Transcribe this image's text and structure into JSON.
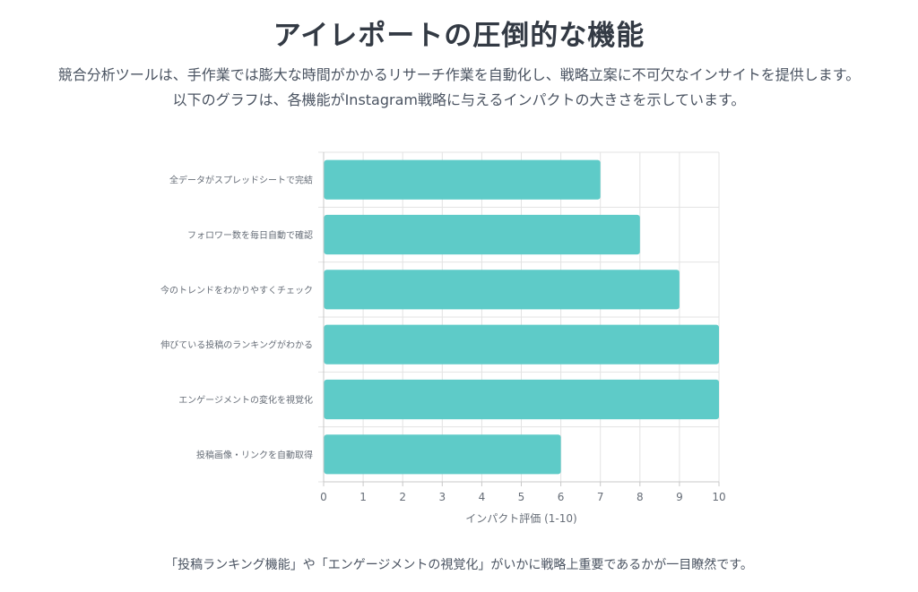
{
  "page": {
    "title": "アイレポートの圧倒的な機能",
    "intro": "競合分析ツールは、手作業では膨大な時間がかかるリサーチ作業を自動化し、戦略立案に不可欠なインサイトを提供します。以下のグラフは、各機能がInstagram戦略に与えるインパクトの大きさを示しています。",
    "footnote": "「投稿ランキング機能」や「エンゲージメントの視覚化」がいかに戦略上重要であるかが一目瞭然です。"
  },
  "colors": {
    "bar": "#5ecbc8",
    "grid": "#e3e3e3",
    "axis": "#c8c8c8"
  },
  "chart_data": {
    "type": "bar",
    "orientation": "horizontal",
    "categories": [
      "全データがスプレッドシートで完結",
      "フォロワー数を毎日自動で確認",
      "今のトレンドをわかりやすくチェック",
      "伸びている投稿のランキングがわかる",
      "エンゲージメントの変化を視覚化",
      "投稿画像・リンクを自動取得"
    ],
    "values": [
      7,
      8,
      9,
      10,
      10,
      6
    ],
    "xlabel": "インパクト評価 (1-10)",
    "xlim": [
      0,
      10
    ],
    "xticks": [
      0,
      1,
      2,
      3,
      4,
      5,
      6,
      7,
      8,
      9,
      10
    ],
    "grid": true,
    "legend": "none"
  }
}
